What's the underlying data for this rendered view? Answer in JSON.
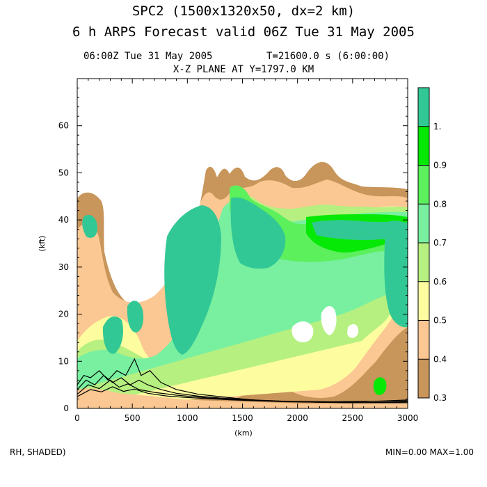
{
  "chart_data": {
    "type": "heatmap",
    "title": "SPC2 (1500x1320x50, dx=2 km)",
    "subtitle": "6 h ARPS Forecast valid 06Z Tue 31 May 2005",
    "time_label": "06:00Z Tue 31 May 2005",
    "t_label": "T=21600.0 s (6:00:00)",
    "plane_label": "X-Z PLANE AT Y=1797.0 KM",
    "xlabel": "(km)",
    "ylabel": "(kft)",
    "xlim": [
      0,
      3000
    ],
    "ylim": [
      0,
      70
    ],
    "xticks": [
      "0",
      "500",
      "1000",
      "1500",
      "2000",
      "2500",
      "3000"
    ],
    "yticks": [
      "0",
      "10",
      "20",
      "30",
      "40",
      "50",
      "60"
    ],
    "variable_label": "RH, SHADED)",
    "minmax_label": "MIN=0.00 MAX=1.00",
    "colorbar": {
      "levels": [
        "0.3",
        "0.4",
        "0.5",
        "0.6",
        "0.7",
        "0.8",
        "0.9",
        "1."
      ],
      "colors": [
        "#c8955a",
        "#fbc792",
        "#fdfda0",
        "#b6f080",
        "#78f0a0",
        "#5cf05c",
        "#06e806",
        "#32c895"
      ]
    },
    "contour_line_color": "#000000",
    "contour_lines": [
      [
        [
          0,
          5
        ],
        [
          60,
          7
        ],
        [
          120,
          6.5
        ],
        [
          200,
          8
        ],
        [
          280,
          6
        ],
        [
          360,
          8
        ],
        [
          440,
          7
        ],
        [
          520,
          10.5
        ],
        [
          580,
          7
        ],
        [
          660,
          8
        ],
        [
          760,
          5.5
        ],
        [
          900,
          4
        ],
        [
          1100,
          3
        ],
        [
          1300,
          2.5
        ],
        [
          1500,
          2
        ],
        [
          1700,
          1.6
        ],
        [
          1900,
          1.5
        ],
        [
          2200,
          1.3
        ],
        [
          2600,
          1.4
        ],
        [
          3000,
          1.8
        ]
      ],
      [
        [
          0,
          4
        ],
        [
          80,
          6
        ],
        [
          160,
          5
        ],
        [
          240,
          7
        ],
        [
          320,
          5.5
        ],
        [
          400,
          6.5
        ],
        [
          480,
          5
        ],
        [
          560,
          6
        ],
        [
          640,
          5
        ],
        [
          760,
          4
        ],
        [
          900,
          3.2
        ],
        [
          1100,
          2.6
        ],
        [
          1300,
          2.2
        ],
        [
          1600,
          1.8
        ],
        [
          1900,
          1.5
        ],
        [
          2300,
          1.4
        ],
        [
          2700,
          1.5
        ],
        [
          3000,
          1.6
        ]
      ],
      [
        [
          0,
          3
        ],
        [
          100,
          5
        ],
        [
          200,
          4.2
        ],
        [
          300,
          6
        ],
        [
          380,
          4.5
        ],
        [
          460,
          5.2
        ],
        [
          560,
          4
        ],
        [
          700,
          3.4
        ],
        [
          900,
          2.8
        ],
        [
          1200,
          2.2
        ],
        [
          1500,
          1.8
        ],
        [
          1800,
          1.5
        ],
        [
          2200,
          1.3
        ],
        [
          2600,
          1.2
        ],
        [
          3000,
          1.4
        ]
      ],
      [
        [
          0,
          2.5
        ],
        [
          120,
          4
        ],
        [
          220,
          3.5
        ],
        [
          320,
          4.6
        ],
        [
          420,
          3.6
        ],
        [
          520,
          4.1
        ],
        [
          640,
          3.2
        ],
        [
          820,
          2.6
        ],
        [
          1000,
          2.3
        ],
        [
          1400,
          1.8
        ],
        [
          1900,
          1.4
        ],
        [
          2500,
          1.2
        ],
        [
          3000,
          1.2
        ]
      ]
    ]
  }
}
